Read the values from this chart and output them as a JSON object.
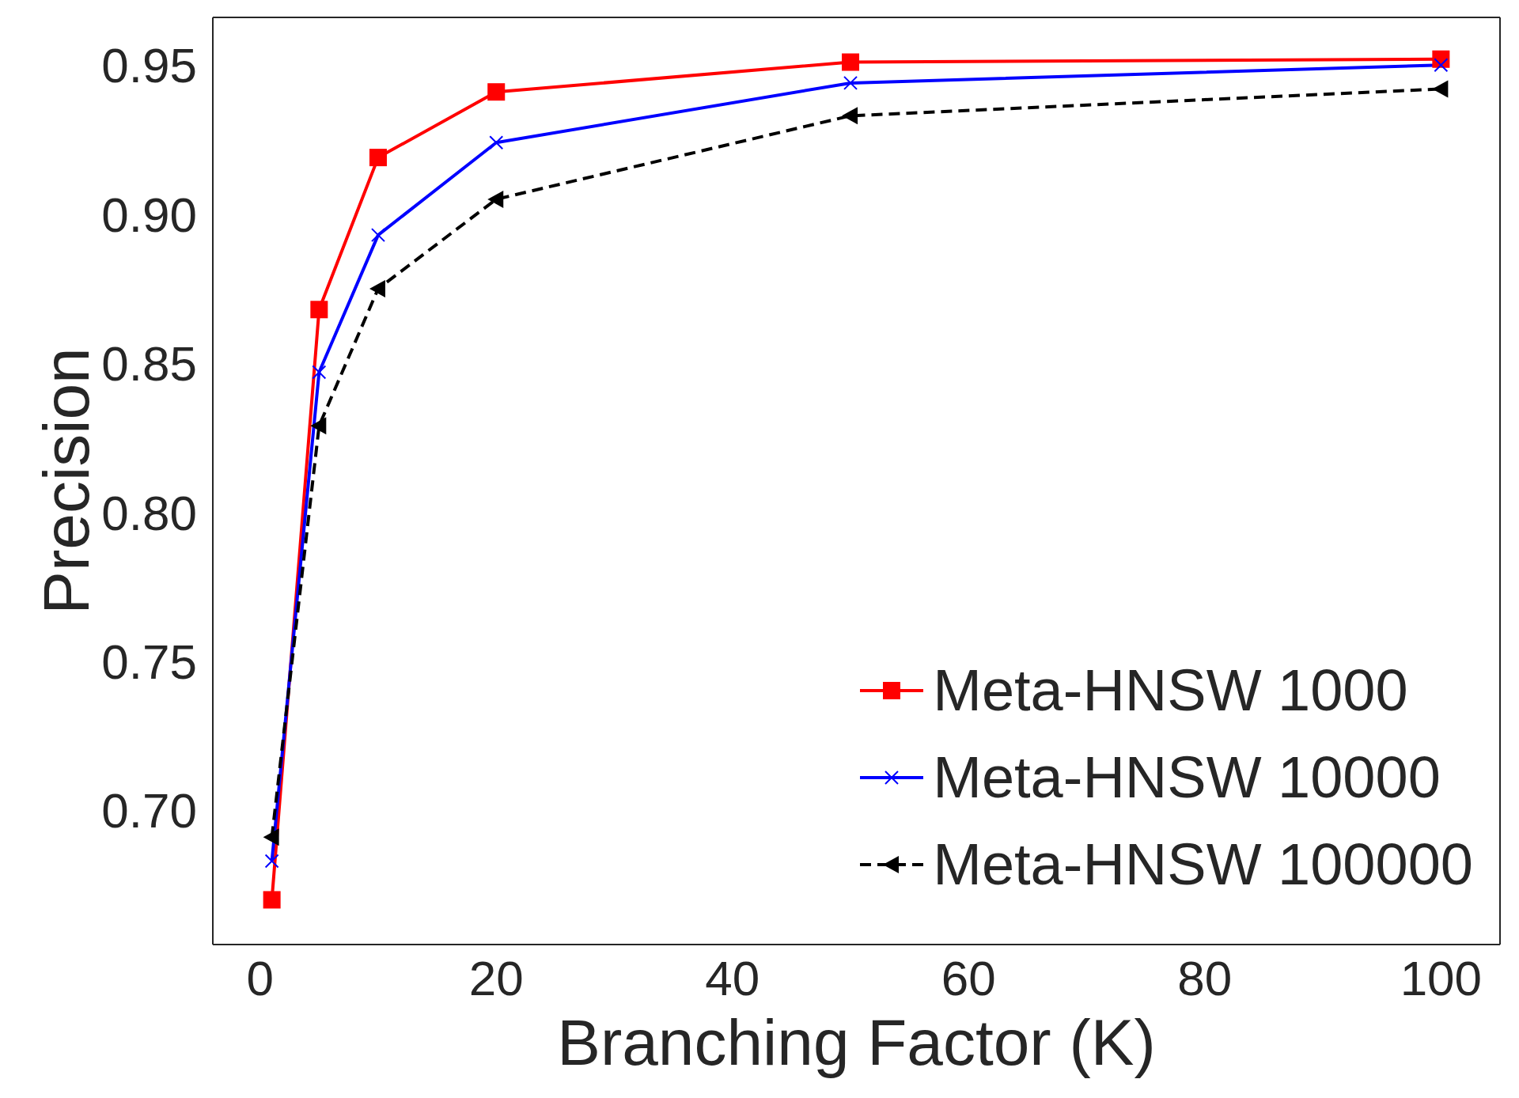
{
  "chart_data": {
    "type": "line",
    "xlabel": "Branching Factor (K)",
    "ylabel": "Precision",
    "x": [
      1,
      5,
      10,
      20,
      50,
      100
    ],
    "series": [
      {
        "name": "Meta-HNSW 1000",
        "color": "#ff0000",
        "marker": "square",
        "line_style": "solid",
        "values": [
          0.67,
          0.868,
          0.919,
          0.941,
          0.951,
          0.952
        ]
      },
      {
        "name": "Meta-HNSW 10000",
        "color": "#0000ff",
        "marker": "cross",
        "line_style": "solid",
        "values": [
          0.683,
          0.847,
          0.893,
          0.924,
          0.944,
          0.95
        ]
      },
      {
        "name": "Meta-HNSW 100000",
        "color": "#000000",
        "marker": "triangle",
        "line_style": "dashed",
        "values": [
          0.691,
          0.829,
          0.875,
          0.905,
          0.933,
          0.942
        ]
      }
    ],
    "xlim": [
      -4,
      105
    ],
    "xticks": [
      0,
      20,
      40,
      60,
      80,
      100
    ],
    "ylim": [
      0.655,
      0.966
    ],
    "yticks": [
      {
        "value": 0.7,
        "label": "0.70"
      },
      {
        "value": 0.75,
        "label": "0.75"
      },
      {
        "value": 0.8,
        "label": "0.80"
      },
      {
        "value": 0.85,
        "label": "0.85"
      },
      {
        "value": 0.9,
        "label": "0.90"
      },
      {
        "value": 0.95,
        "label": "0.95"
      }
    ],
    "grid": false,
    "legend": "bottom right"
  }
}
